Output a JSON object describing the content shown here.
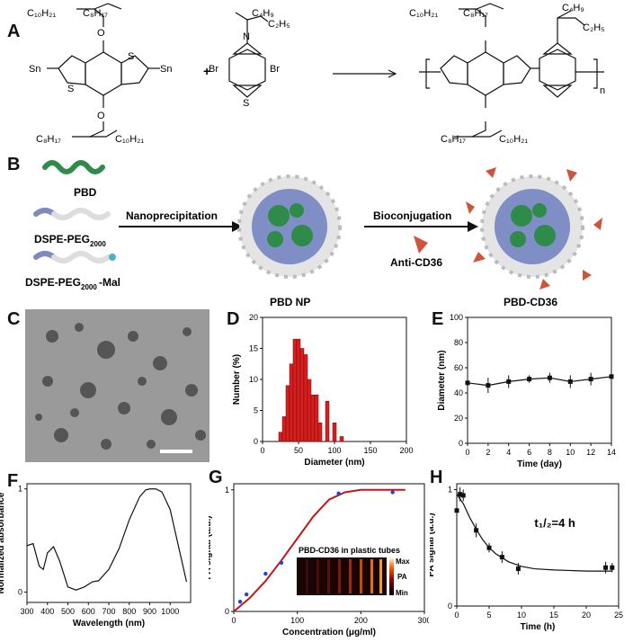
{
  "panels": [
    "A",
    "B",
    "C",
    "D",
    "E",
    "F",
    "G",
    "H"
  ],
  "panelA": {
    "monomer1": {
      "chain_top": "C₁₀H₂₁",
      "chain_top2": "C₈H₁₇",
      "chain_bot": "C₈H₁₇",
      "chain_bot2": "C₁₀H₂₁",
      "tin": "Sn",
      "s": "S",
      "o": "O"
    },
    "monomer2": {
      "chain1": "C₄H₉",
      "chain2": "C₂H₅",
      "br": "Br",
      "n": "N",
      "s": "S"
    },
    "plus": "+",
    "repeat": "n"
  },
  "panelB": {
    "components": [
      "PBD",
      "DSPE-PEG",
      "DSPE-PEG"
    ],
    "peg_sub": "2000",
    "mal_suffix": "-Mal",
    "step1": "Nanoprecipitation",
    "step2": "Bioconjugation",
    "antibody": "Anti-CD36",
    "np1": "PBD NP",
    "np2": "PBD-CD36"
  },
  "panelD": {
    "xlabel": "Diameter (nm)",
    "ylabel": "Number (%)"
  },
  "panelE": {
    "xlabel": "Time (day)",
    "ylabel": "Diameter (nm)"
  },
  "panelF": {
    "xlabel": "Wavelength (nm)",
    "ylabel": "Normalized absorbance"
  },
  "panelG": {
    "xlabel": "Concentration (μg/ml)",
    "ylabel": "PA signal (a.u.)",
    "inset_title": "PBD-CD36 in plastic tubes",
    "cb_max": "Max",
    "cb_min": "Min",
    "cb_label": "PA"
  },
  "panelH": {
    "xlabel": "Time (h)",
    "ylabel": "PA signal (a.u.)",
    "annotation": "t₁/₂=4 h"
  },
  "chart_data": [
    {
      "panel": "D",
      "type": "bar",
      "xlabel": "Diameter (nm)",
      "ylabel": "Number (%)",
      "x": [
        25,
        30,
        35,
        40,
        45,
        50,
        55,
        60,
        65,
        70,
        75,
        80,
        90,
        100,
        110
      ],
      "values": [
        1.5,
        4,
        9,
        12.5,
        16.5,
        16.5,
        15,
        14,
        10,
        7.5,
        7.5,
        3,
        6.5,
        3,
        0.8
      ],
      "xlim": [
        0,
        200
      ],
      "ylim": [
        0,
        20
      ],
      "xticks": [
        0,
        50,
        100,
        150,
        200
      ],
      "yticks": [
        0,
        5,
        10,
        15,
        20
      ],
      "color": "#d42020"
    },
    {
      "panel": "E",
      "type": "line",
      "xlabel": "Time (day)",
      "ylabel": "Diameter (nm)",
      "x": [
        0,
        2,
        4,
        6,
        8,
        10,
        12,
        14
      ],
      "values": [
        48,
        46,
        49,
        51,
        52,
        49,
        51,
        53
      ],
      "errors": [
        3,
        6,
        5,
        3,
        4,
        5,
        5,
        4
      ],
      "xlim": [
        0,
        14
      ],
      "ylim": [
        0,
        100
      ],
      "xticks": [
        0,
        2,
        4,
        6,
        8,
        10,
        12,
        14
      ],
      "yticks": [
        0,
        20,
        40,
        60,
        80,
        100
      ]
    },
    {
      "panel": "F",
      "type": "line",
      "xlabel": "Wavelength (nm)",
      "ylabel": "Normalized absorbance",
      "x": [
        300,
        330,
        360,
        380,
        400,
        430,
        460,
        500,
        540,
        580,
        620,
        650,
        700,
        750,
        800,
        850,
        880,
        900,
        930,
        960,
        1000,
        1040,
        1080
      ],
      "values": [
        0.45,
        0.47,
        0.25,
        0.22,
        0.38,
        0.44,
        0.3,
        0.05,
        0.02,
        0.05,
        0.1,
        0.11,
        0.22,
        0.42,
        0.7,
        0.92,
        0.99,
        1.0,
        1.0,
        0.97,
        0.8,
        0.45,
        0.1
      ],
      "xlim": [
        300,
        1100
      ],
      "ylim": [
        -0.1,
        1.05
      ],
      "xticks": [
        300,
        400,
        500,
        600,
        700,
        800,
        900,
        1000
      ],
      "yticks": [
        0,
        1
      ]
    },
    {
      "panel": "G",
      "type": "scatter",
      "xlabel": "Concentration (μg/ml)",
      "ylabel": "PA signal (a.u.)",
      "x": [
        10,
        20,
        50,
        75,
        165,
        250
      ],
      "values": [
        0.08,
        0.14,
        0.31,
        0.4,
        0.97,
        0.98
      ],
      "fit_x": [
        0,
        25,
        50,
        75,
        100,
        125,
        150,
        175,
        200,
        225,
        250,
        270
      ],
      "fit_y": [
        0.0,
        0.11,
        0.25,
        0.42,
        0.6,
        0.78,
        0.92,
        0.98,
        1.0,
        1.0,
        1.0,
        1.0
      ],
      "xlim": [
        0,
        300
      ],
      "ylim": [
        0,
        1.05
      ],
      "xticks": [
        0,
        100,
        200,
        300
      ],
      "yticks": [
        0,
        1
      ]
    },
    {
      "panel": "H",
      "type": "scatter",
      "xlabel": "Time (h)",
      "ylabel": "PA signal (a.u.)",
      "x": [
        0,
        0.5,
        1,
        3,
        5,
        7,
        9.5,
        23,
        24
      ],
      "values": [
        0.82,
        0.96,
        0.95,
        0.65,
        0.5,
        0.42,
        0.32,
        0.33,
        0.33
      ],
      "errors": [
        0.03,
        0.06,
        0.05,
        0.06,
        0.04,
        0.05,
        0.05,
        0.05,
        0.04
      ],
      "fit_x": [
        0,
        1,
        2,
        3,
        4,
        5,
        6,
        8,
        10,
        12,
        15,
        20,
        24
      ],
      "fit_y": [
        0.96,
        0.88,
        0.76,
        0.66,
        0.57,
        0.5,
        0.45,
        0.38,
        0.34,
        0.32,
        0.31,
        0.3,
        0.3
      ],
      "xlim": [
        0,
        25
      ],
      "ylim": [
        0,
        1.05
      ],
      "xticks": [
        0,
        5,
        10,
        15,
        20,
        25
      ],
      "yticks": [
        0,
        1
      ]
    }
  ]
}
